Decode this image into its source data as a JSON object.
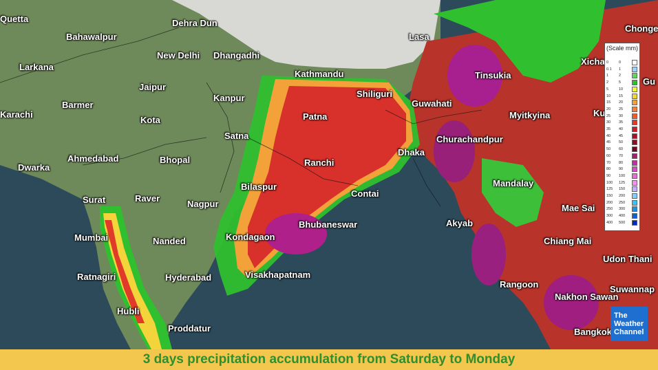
{
  "map": {
    "title": "3 days precipitation accumulation from Saturday to Monday",
    "brand": {
      "line1": "The",
      "line2": "Weather",
      "line3": "Channel"
    },
    "colors": {
      "sea": "#2c4a5a",
      "land": "#6f8a5a",
      "banner": "#f3c64e",
      "title_text": "#2f8f2f",
      "brand_bg": "#1f6fd1"
    },
    "cities": [
      {
        "id": "quetta",
        "name": "Quetta"
      },
      {
        "id": "bahawalpur",
        "name": "Bahawalpur"
      },
      {
        "id": "dehra-dun",
        "name": "Dehra Dun"
      },
      {
        "id": "lasa",
        "name": "Lasa"
      },
      {
        "id": "chonge",
        "name": "Chonge"
      },
      {
        "id": "new-delhi",
        "name": "New Delhi"
      },
      {
        "id": "dhangadhi",
        "name": "Dhangadhi"
      },
      {
        "id": "xicha",
        "name": "Xicha"
      },
      {
        "id": "larkana",
        "name": "Larkana"
      },
      {
        "id": "kathmandu",
        "name": "Kathmandu"
      },
      {
        "id": "tinsukia",
        "name": "Tinsukia"
      },
      {
        "id": "jaipur",
        "name": "Jaipur"
      },
      {
        "id": "gu",
        "name": "Gu"
      },
      {
        "id": "shiliguri",
        "name": "Shiliguri"
      },
      {
        "id": "kanpur",
        "name": "Kanpur"
      },
      {
        "id": "barmer",
        "name": "Barmer"
      },
      {
        "id": "guwahati",
        "name": "Guwahati"
      },
      {
        "id": "karachi",
        "name": "Karachi"
      },
      {
        "id": "patna",
        "name": "Patna"
      },
      {
        "id": "myitkyina",
        "name": "Myitkyina"
      },
      {
        "id": "ku",
        "name": "Ku"
      },
      {
        "id": "kota",
        "name": "Kota"
      },
      {
        "id": "satna",
        "name": "Satna"
      },
      {
        "id": "churachandpur",
        "name": "Churachandpur"
      },
      {
        "id": "ahmedabad",
        "name": "Ahmedabad"
      },
      {
        "id": "dwarka",
        "name": "Dwarka"
      },
      {
        "id": "bhopal",
        "name": "Bhopal"
      },
      {
        "id": "ranchi",
        "name": "Ranchi"
      },
      {
        "id": "dhaka",
        "name": "Dhaka"
      },
      {
        "id": "mandalay",
        "name": "Mandalay"
      },
      {
        "id": "bilaspur",
        "name": "Bilaspur"
      },
      {
        "id": "contai",
        "name": "Contai"
      },
      {
        "id": "surat",
        "name": "Surat"
      },
      {
        "id": "raver",
        "name": "Raver"
      },
      {
        "id": "nagpur",
        "name": "Nagpur"
      },
      {
        "id": "mae-sai",
        "name": "Mae Sai"
      },
      {
        "id": "bhubaneswar",
        "name": "Bhubaneswar"
      },
      {
        "id": "akyab",
        "name": "Akyab"
      },
      {
        "id": "mumbai",
        "name": "Mumbai"
      },
      {
        "id": "kondagaon",
        "name": "Kondagaon"
      },
      {
        "id": "nanded",
        "name": "Nanded"
      },
      {
        "id": "chiang-mai",
        "name": "Chiang Mai"
      },
      {
        "id": "udon-thani",
        "name": "Udon Thani"
      },
      {
        "id": "visakhapatnam",
        "name": "Visakhapatnam"
      },
      {
        "id": "ratnagiri",
        "name": "Ratnagiri"
      },
      {
        "id": "hyderabad",
        "name": "Hyderabad"
      },
      {
        "id": "suwannap",
        "name": "Suwannap"
      },
      {
        "id": "rangoon",
        "name": "Rangoon"
      },
      {
        "id": "nakhon-sawan",
        "name": "Nakhon Sawan"
      },
      {
        "id": "hubli",
        "name": "Hubli"
      },
      {
        "id": "proddatur",
        "name": "Proddatur"
      },
      {
        "id": "bangkok",
        "name": "Bangkok"
      }
    ],
    "scale": {
      "title": "(Scale mm)",
      "rows": [
        {
          "from": "0",
          "to": "0",
          "color": "#ffffff"
        },
        {
          "from": "0.1",
          "to": "1",
          "color": "#9bd0ff"
        },
        {
          "from": "1",
          "to": "2",
          "color": "#5fd45f"
        },
        {
          "from": "2",
          "to": "5",
          "color": "#2fbf2f"
        },
        {
          "from": "5",
          "to": "10",
          "color": "#f3f33a"
        },
        {
          "from": "10",
          "to": "15",
          "color": "#f3d43a"
        },
        {
          "from": "15",
          "to": "20",
          "color": "#f3a23a"
        },
        {
          "from": "20",
          "to": "25",
          "color": "#f3803a"
        },
        {
          "from": "25",
          "to": "30",
          "color": "#f35a2a"
        },
        {
          "from": "30",
          "to": "35",
          "color": "#e03a2a"
        },
        {
          "from": "35",
          "to": "40",
          "color": "#c8202a"
        },
        {
          "from": "40",
          "to": "45",
          "color": "#a8102a"
        },
        {
          "from": "45",
          "to": "50",
          "color": "#881020"
        },
        {
          "from": "50",
          "to": "60",
          "color": "#6a0a20"
        },
        {
          "from": "60",
          "to": "70",
          "color": "#a02070"
        },
        {
          "from": "70",
          "to": "80",
          "color": "#c030a0"
        },
        {
          "from": "80",
          "to": "90",
          "color": "#d050c0"
        },
        {
          "from": "90",
          "to": "100",
          "color": "#e070d8"
        },
        {
          "from": "100",
          "to": "125",
          "color": "#f090f0"
        },
        {
          "from": "125",
          "to": "150",
          "color": "#c0b0ff"
        },
        {
          "from": "150",
          "to": "200",
          "color": "#80d0ff"
        },
        {
          "from": "200",
          "to": "250",
          "color": "#40c0f0"
        },
        {
          "from": "250",
          "to": "300",
          "color": "#2090e0"
        },
        {
          "from": "300",
          "to": "400",
          "color": "#1060d0"
        },
        {
          "from": "400",
          "to": "500",
          "color": "#0030b0"
        }
      ]
    }
  }
}
